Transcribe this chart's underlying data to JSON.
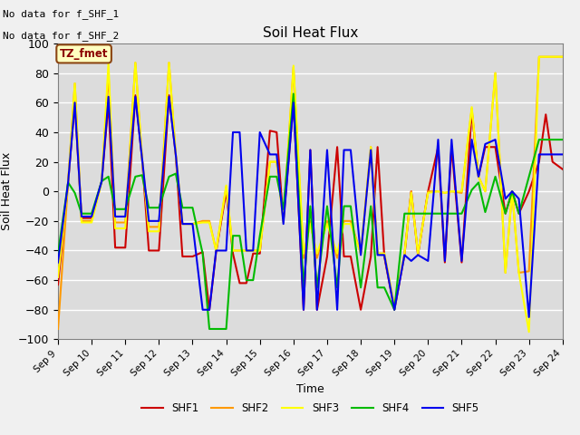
{
  "title": "Soil Heat Flux",
  "ylabel": "Soil Heat Flux",
  "xlabel": "Time",
  "ylim": [
    -100,
    100
  ],
  "plot_bg": "#dcdcdc",
  "fig_bg": "#f0f0f0",
  "annotation_line1": "No data for f_SHF_1",
  "annotation_line2": "No data for f_SHF_2",
  "box_label": "TZ_fmet",
  "colors": {
    "SHF1": "#cc0000",
    "SHF2": "#ff9900",
    "SHF3": "#ffff00",
    "SHF4": "#00bb00",
    "SHF5": "#0000ee"
  },
  "x_ticks": [
    9,
    10,
    11,
    12,
    13,
    14,
    15,
    16,
    17,
    18,
    19,
    20,
    21,
    22,
    23,
    24
  ],
  "series_x": [
    9.0,
    9.3,
    9.5,
    9.7,
    10.0,
    10.3,
    10.5,
    10.7,
    11.0,
    11.3,
    11.5,
    11.7,
    12.0,
    12.3,
    12.5,
    12.7,
    13.0,
    13.3,
    13.5,
    13.7,
    14.0,
    14.2,
    14.4,
    14.6,
    14.8,
    15.0,
    15.3,
    15.5,
    15.7,
    16.0,
    16.3,
    16.5,
    16.7,
    17.0,
    17.3,
    17.5,
    17.7,
    18.0,
    18.3,
    18.5,
    18.7,
    19.0,
    19.3,
    19.5,
    19.7,
    20.0,
    20.3,
    20.5,
    20.7,
    21.0,
    21.3,
    21.5,
    21.7,
    22.0,
    22.3,
    22.5,
    22.7,
    23.0,
    23.3,
    23.5,
    23.7,
    24.0
  ],
  "SHF1": [
    -63,
    6,
    60,
    -18,
    -18,
    7,
    60,
    -38,
    -38,
    65,
    22,
    -40,
    -40,
    65,
    25,
    -44,
    -44,
    -41,
    -80,
    -41,
    0,
    -42,
    -62,
    -62,
    -42,
    -42,
    41,
    40,
    -20,
    60,
    -80,
    28,
    -80,
    -44,
    30,
    -44,
    -44,
    -80,
    -44,
    30,
    -44,
    -80,
    -43,
    0,
    -43,
    0,
    30,
    -48,
    30,
    -48,
    54,
    10,
    30,
    30,
    -15,
    0,
    -15,
    0,
    20,
    52,
    20,
    15
  ],
  "SHF2": [
    -93,
    6,
    73,
    -20,
    -20,
    7,
    80,
    -21,
    -21,
    87,
    22,
    -24,
    -24,
    87,
    25,
    -22,
    -22,
    -20,
    -20,
    -40,
    3,
    -40,
    -40,
    -40,
    -40,
    -40,
    20,
    20,
    -20,
    84,
    -45,
    -20,
    -45,
    -20,
    -45,
    -20,
    -20,
    -42,
    30,
    -42,
    -42,
    -78,
    -42,
    0,
    -42,
    0,
    0,
    -1,
    0,
    -1,
    56,
    10,
    0,
    80,
    -55,
    0,
    -55,
    -54,
    91,
    91,
    91,
    91
  ],
  "SHF3": [
    -58,
    6,
    73,
    -21,
    -21,
    7,
    87,
    -25,
    -25,
    87,
    22,
    -27,
    -27,
    87,
    25,
    -22,
    -22,
    -21,
    -21,
    -40,
    4,
    -40,
    -40,
    -40,
    -40,
    -40,
    20,
    20,
    -21,
    85,
    -42,
    -22,
    -42,
    -22,
    -42,
    -22,
    -22,
    -42,
    30,
    -42,
    -42,
    -78,
    -42,
    -1,
    -42,
    -1,
    0,
    -1,
    0,
    0,
    57,
    10,
    0,
    80,
    -55,
    0,
    -55,
    -95,
    91,
    91,
    91,
    91
  ],
  "SHF4": [
    -42,
    6,
    -1,
    -15,
    -15,
    7,
    10,
    -12,
    -12,
    10,
    11,
    -11,
    -11,
    10,
    12,
    -11,
    -11,
    -42,
    -93,
    -93,
    -93,
    -30,
    -30,
    -60,
    -60,
    -30,
    10,
    10,
    -12,
    66,
    -65,
    -10,
    -65,
    -10,
    -65,
    -10,
    -10,
    -65,
    -10,
    -65,
    -65,
    -80,
    -15,
    -15,
    -15,
    -15,
    -15,
    -15,
    -15,
    -15,
    1,
    6,
    -14,
    10,
    -15,
    0,
    -15,
    10,
    35,
    35,
    35,
    35
  ],
  "SHF5": [
    -48,
    6,
    60,
    -17,
    -17,
    7,
    64,
    -17,
    -17,
    64,
    22,
    -20,
    -20,
    64,
    25,
    -22,
    -22,
    -80,
    -80,
    -40,
    -40,
    40,
    40,
    -40,
    -40,
    40,
    25,
    25,
    -22,
    60,
    -80,
    28,
    -80,
    28,
    -80,
    28,
    28,
    -43,
    28,
    -43,
    -43,
    -80,
    -43,
    -47,
    -43,
    -47,
    35,
    -47,
    35,
    -47,
    35,
    10,
    32,
    35,
    -5,
    0,
    -5,
    -85,
    25,
    25,
    25,
    25
  ]
}
